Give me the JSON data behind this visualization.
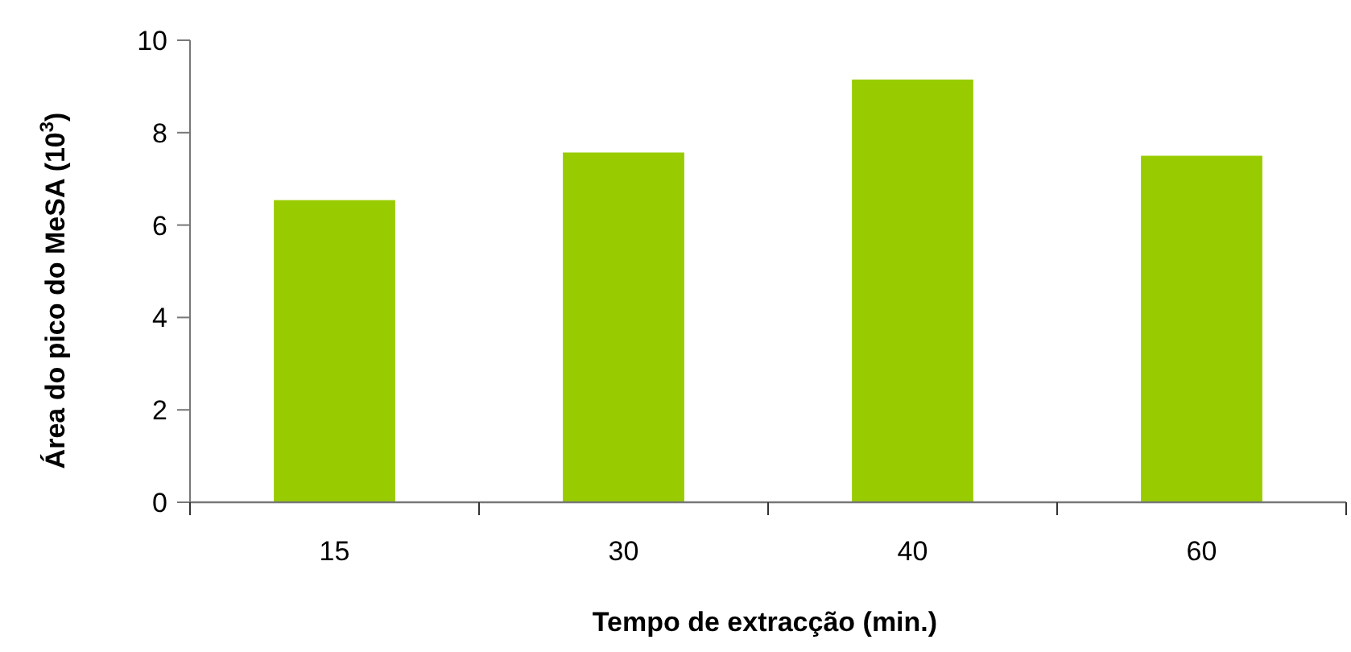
{
  "chart_data": {
    "type": "bar",
    "xlabel": "Tempo de extracção (min.)",
    "ylabel": "Área do pico do MeSA (10$^{3}$)",
    "categories": [
      "15",
      "30",
      "40",
      "60"
    ],
    "values": [
      6.54,
      7.57,
      9.15,
      7.5
    ],
    "color": "#99cc00",
    "ylim": [
      0,
      10
    ],
    "yticks": [
      0,
      2,
      4,
      6,
      8,
      10
    ],
    "grid": false
  }
}
